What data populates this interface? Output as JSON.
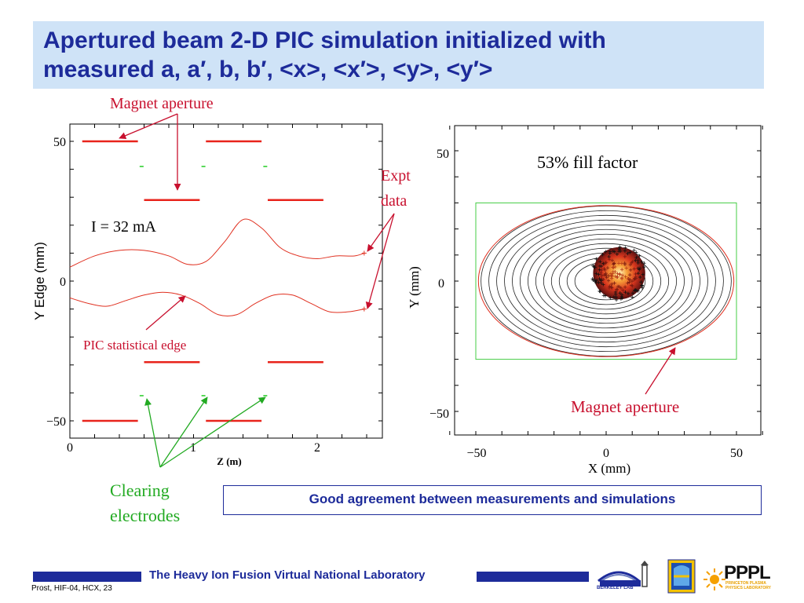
{
  "title": {
    "line1": "Apertured beam 2-D PIC simulation initialized with",
    "line2": "measured a, a′, b, b′, <x>, <x′>, <y>, <y′>"
  },
  "annotations": {
    "magnet_aperture_left": "Magnet aperture",
    "expt_line1": "Expt",
    "expt_line2": "data",
    "current": "I = 32 mA",
    "pic_edge": "PIC statistical edge",
    "clearing_line1": "Clearing",
    "clearing_line2": "electrodes",
    "fill_factor": "53% fill factor",
    "magnet_aperture_right": "Magnet aperture"
  },
  "conclusion": "Good agreement between measurements and simulations",
  "footer": {
    "lab": "The Heavy Ion Fusion Virtual National Laboratory",
    "ref": "Prost, HIF-04, HCX, 23",
    "pppl": "PPPL",
    "pppl_sub": "PRINCETON PLASMA PHYSICS LABORATORY",
    "berkeley": "BERKELEY LAB"
  },
  "colors": {
    "title_blue": "#1d2b9a",
    "title_bg": "#cfe3f7",
    "annotation_red": "#c8102e",
    "annotation_green": "#22aa22",
    "trace_red": "#e03020",
    "box_green": "#44cc44"
  },
  "chart_data": [
    {
      "type": "line",
      "title": "",
      "xlabel": "Z  (m)",
      "ylabel": "Y Edge (mm)",
      "xlim": [
        0,
        2.45
      ],
      "ylim": [
        -55,
        55
      ],
      "x_ticks": [
        "0",
        "1",
        "2"
      ],
      "y_ticks": [
        "50",
        "0",
        "−50"
      ],
      "series": [
        {
          "x": [
            0,
            0.2,
            0.4,
            0.6,
            0.8,
            0.95,
            1.1,
            1.25,
            1.4,
            1.55,
            1.7,
            1.85,
            2.0,
            2.15,
            2.3,
            2.38
          ],
          "values": [
            5,
            9,
            11,
            11,
            9,
            6,
            7,
            14,
            22,
            19,
            12,
            9,
            8,
            9,
            9,
            10
          ]
        },
        {
          "x": [
            0,
            0.15,
            0.3,
            0.45,
            0.6,
            0.75,
            0.9,
            1.05,
            1.2,
            1.35,
            1.5,
            1.65,
            1.8,
            1.95,
            2.1,
            2.25,
            2.38
          ],
          "values": [
            -6,
            -8,
            -9,
            -7,
            -5,
            -4,
            -5,
            -8,
            -12,
            -12,
            -8,
            -5,
            -5,
            -8,
            -11,
            -11,
            -10
          ]
        }
      ],
      "expt_points": [
        {
          "x": 2.38,
          "y": 10
        },
        {
          "x": 2.38,
          "y": -10
        }
      ],
      "magnet_apertures": [
        {
          "x0": 0.1,
          "x1": 0.55,
          "y": 50
        },
        {
          "x0": 1.1,
          "x1": 1.55,
          "y": 50
        },
        {
          "x0": 0.6,
          "x1": 1.05,
          "y": 29
        },
        {
          "x0": 1.6,
          "x1": 2.05,
          "y": 29
        },
        {
          "x0": 0.6,
          "x1": 1.05,
          "y": -29
        },
        {
          "x0": 1.6,
          "x1": 2.05,
          "y": -29
        },
        {
          "x0": 0.1,
          "x1": 0.55,
          "y": -50
        },
        {
          "x0": 1.1,
          "x1": 1.55,
          "y": -50
        }
      ],
      "clearing_electrodes": [
        {
          "x": 0.58,
          "y": 41
        },
        {
          "x": 1.08,
          "y": 41
        },
        {
          "x": 1.58,
          "y": 41
        },
        {
          "x": 0.58,
          "y": -41
        },
        {
          "x": 1.08,
          "y": -41
        },
        {
          "x": 1.58,
          "y": -41
        }
      ]
    },
    {
      "type": "scatter",
      "title": "",
      "xlabel": "X (mm)",
      "ylabel": "Y (mm)",
      "xlim": [
        -62,
        62
      ],
      "ylim": [
        -58,
        58
      ],
      "x_ticks": [
        "−50",
        "0",
        "50"
      ],
      "y_ticks": [
        "50",
        "0",
        "−50"
      ],
      "fill_factor_percent": 53,
      "aperture_box": {
        "x0": -50,
        "x1": 50,
        "y0": -30,
        "y1": 30
      },
      "red_ellipse": {
        "rx": 49,
        "ry": 29
      },
      "contour_ellipses_rx": [
        48,
        45,
        42,
        39,
        36,
        33,
        30,
        27,
        24,
        21,
        18,
        15,
        12
      ],
      "contour_aspect": 0.6,
      "beam_center": {
        "x": 5,
        "y": 3
      },
      "beam_radius": 10
    }
  ]
}
